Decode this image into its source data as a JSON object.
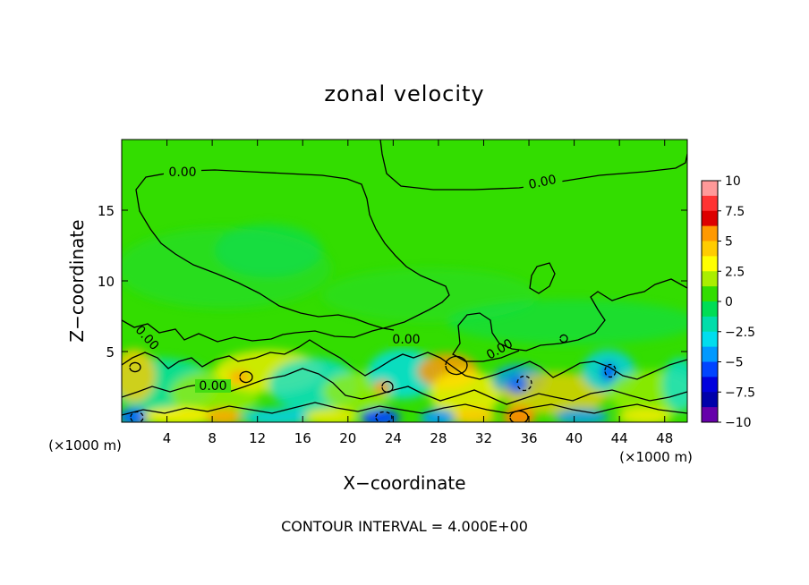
{
  "chart_data": {
    "type": "heatmap",
    "title": "zonal velocity",
    "xlabel": "X−coordinate",
    "ylabel": "Z−coordinate",
    "x_unit_left": "(×1000 m)",
    "x_unit_right": "(×1000 m)",
    "footer": "CONTOUR INTERVAL = 4.000E+00",
    "xlim": [
      0,
      50
    ],
    "ylim": [
      0,
      20
    ],
    "x_ticks": [
      4,
      8,
      12,
      16,
      20,
      24,
      28,
      32,
      36,
      40,
      44,
      48
    ],
    "y_ticks": [
      5,
      10,
      15
    ],
    "contour_labels": [
      "0.00",
      "0.00",
      "0.00",
      "0.00",
      "0.00",
      "0.00"
    ],
    "colorbar": {
      "ticks": [
        "10",
        "7.5",
        "5",
        "2.5",
        "0",
        "−2.5",
        "−5",
        "−7.5",
        "−10"
      ],
      "min": -10,
      "max": 10,
      "colors": [
        "#ff9999",
        "#ff3333",
        "#dd0000",
        "#ff9900",
        "#ffcc00",
        "#ffff00",
        "#aaee00",
        "#33dd00",
        "#00dd55",
        "#00ddaa",
        "#00ddee",
        "#0099ff",
        "#0044ff",
        "#0000dd",
        "#0000aa",
        "#6600aa"
      ]
    }
  }
}
